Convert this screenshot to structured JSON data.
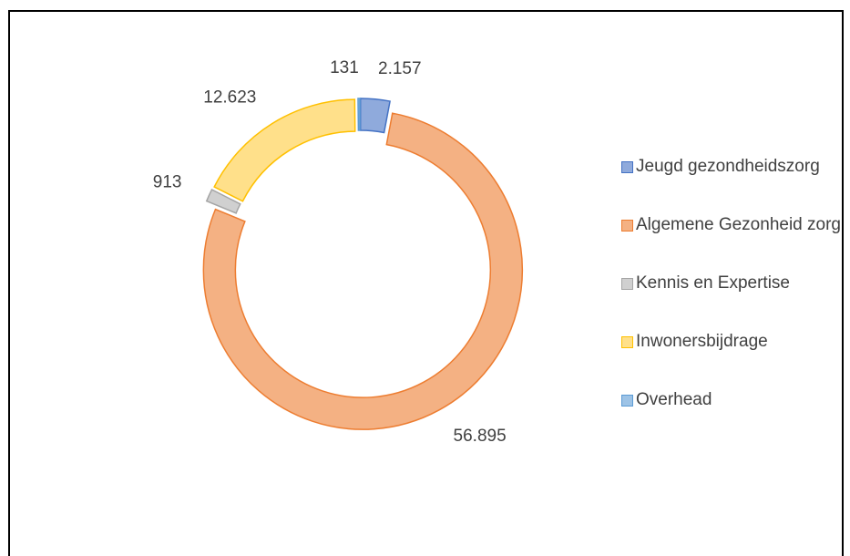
{
  "chart_data": {
    "type": "pie",
    "donut": true,
    "categories": [
      "Jeugd gezondheidszorg",
      "Algemene Gezonheid zorg",
      "Kennis en Expertise",
      "Inwonersbijdrage",
      "Overhead"
    ],
    "values": [
      2157,
      56895,
      913,
      12623,
      131
    ],
    "value_labels": [
      "2.157",
      "56.895",
      "913",
      "12.623",
      "131"
    ],
    "colors": [
      "#8faadc",
      "#f4b183",
      "#d0d0d0",
      "#ffe08a",
      "#9dc3e6"
    ],
    "stroke_colors": [
      "#4472c4",
      "#ed7d31",
      "#a5a5a5",
      "#ffc000",
      "#5b9bd5"
    ],
    "legend": "right"
  }
}
